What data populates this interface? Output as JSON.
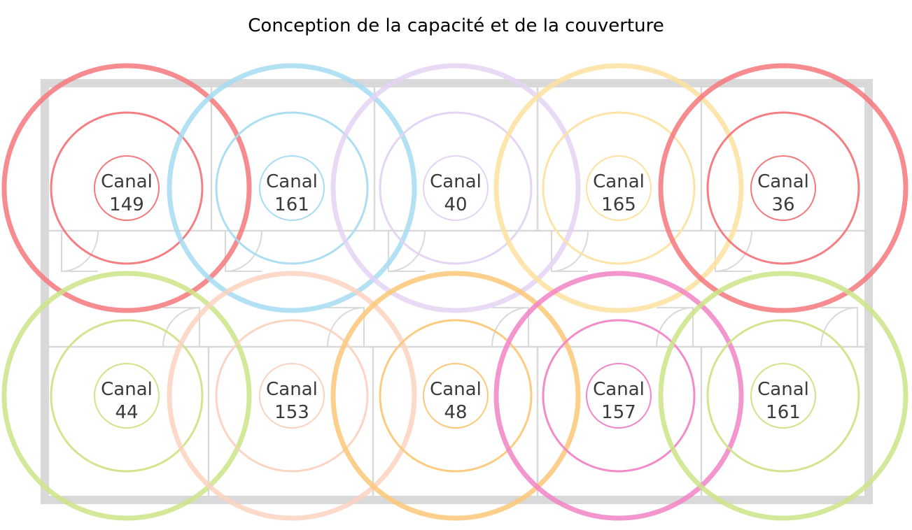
{
  "title": "Conception de la capacité et de la couverture",
  "access_points": [
    {
      "label": "Canal",
      "channel": "149",
      "color": "#f4777c"
    },
    {
      "label": "Canal",
      "channel": "161",
      "color": "#a6dcf2"
    },
    {
      "label": "Canal",
      "channel": "40",
      "color": "#e4d3f3"
    },
    {
      "label": "Canal",
      "channel": "165",
      "color": "#fde1a0"
    },
    {
      "label": "Canal",
      "channel": "36",
      "color": "#f4777c"
    },
    {
      "label": "Canal",
      "channel": "44",
      "color": "#cde487"
    },
    {
      "label": "Canal",
      "channel": "153",
      "color": "#fbd2c0"
    },
    {
      "label": "Canal",
      "channel": "48",
      "color": "#fcc878"
    },
    {
      "label": "Canal",
      "channel": "157",
      "color": "#f284c6"
    },
    {
      "label": "Canal",
      "channel": "161",
      "color": "#cde487"
    }
  ]
}
